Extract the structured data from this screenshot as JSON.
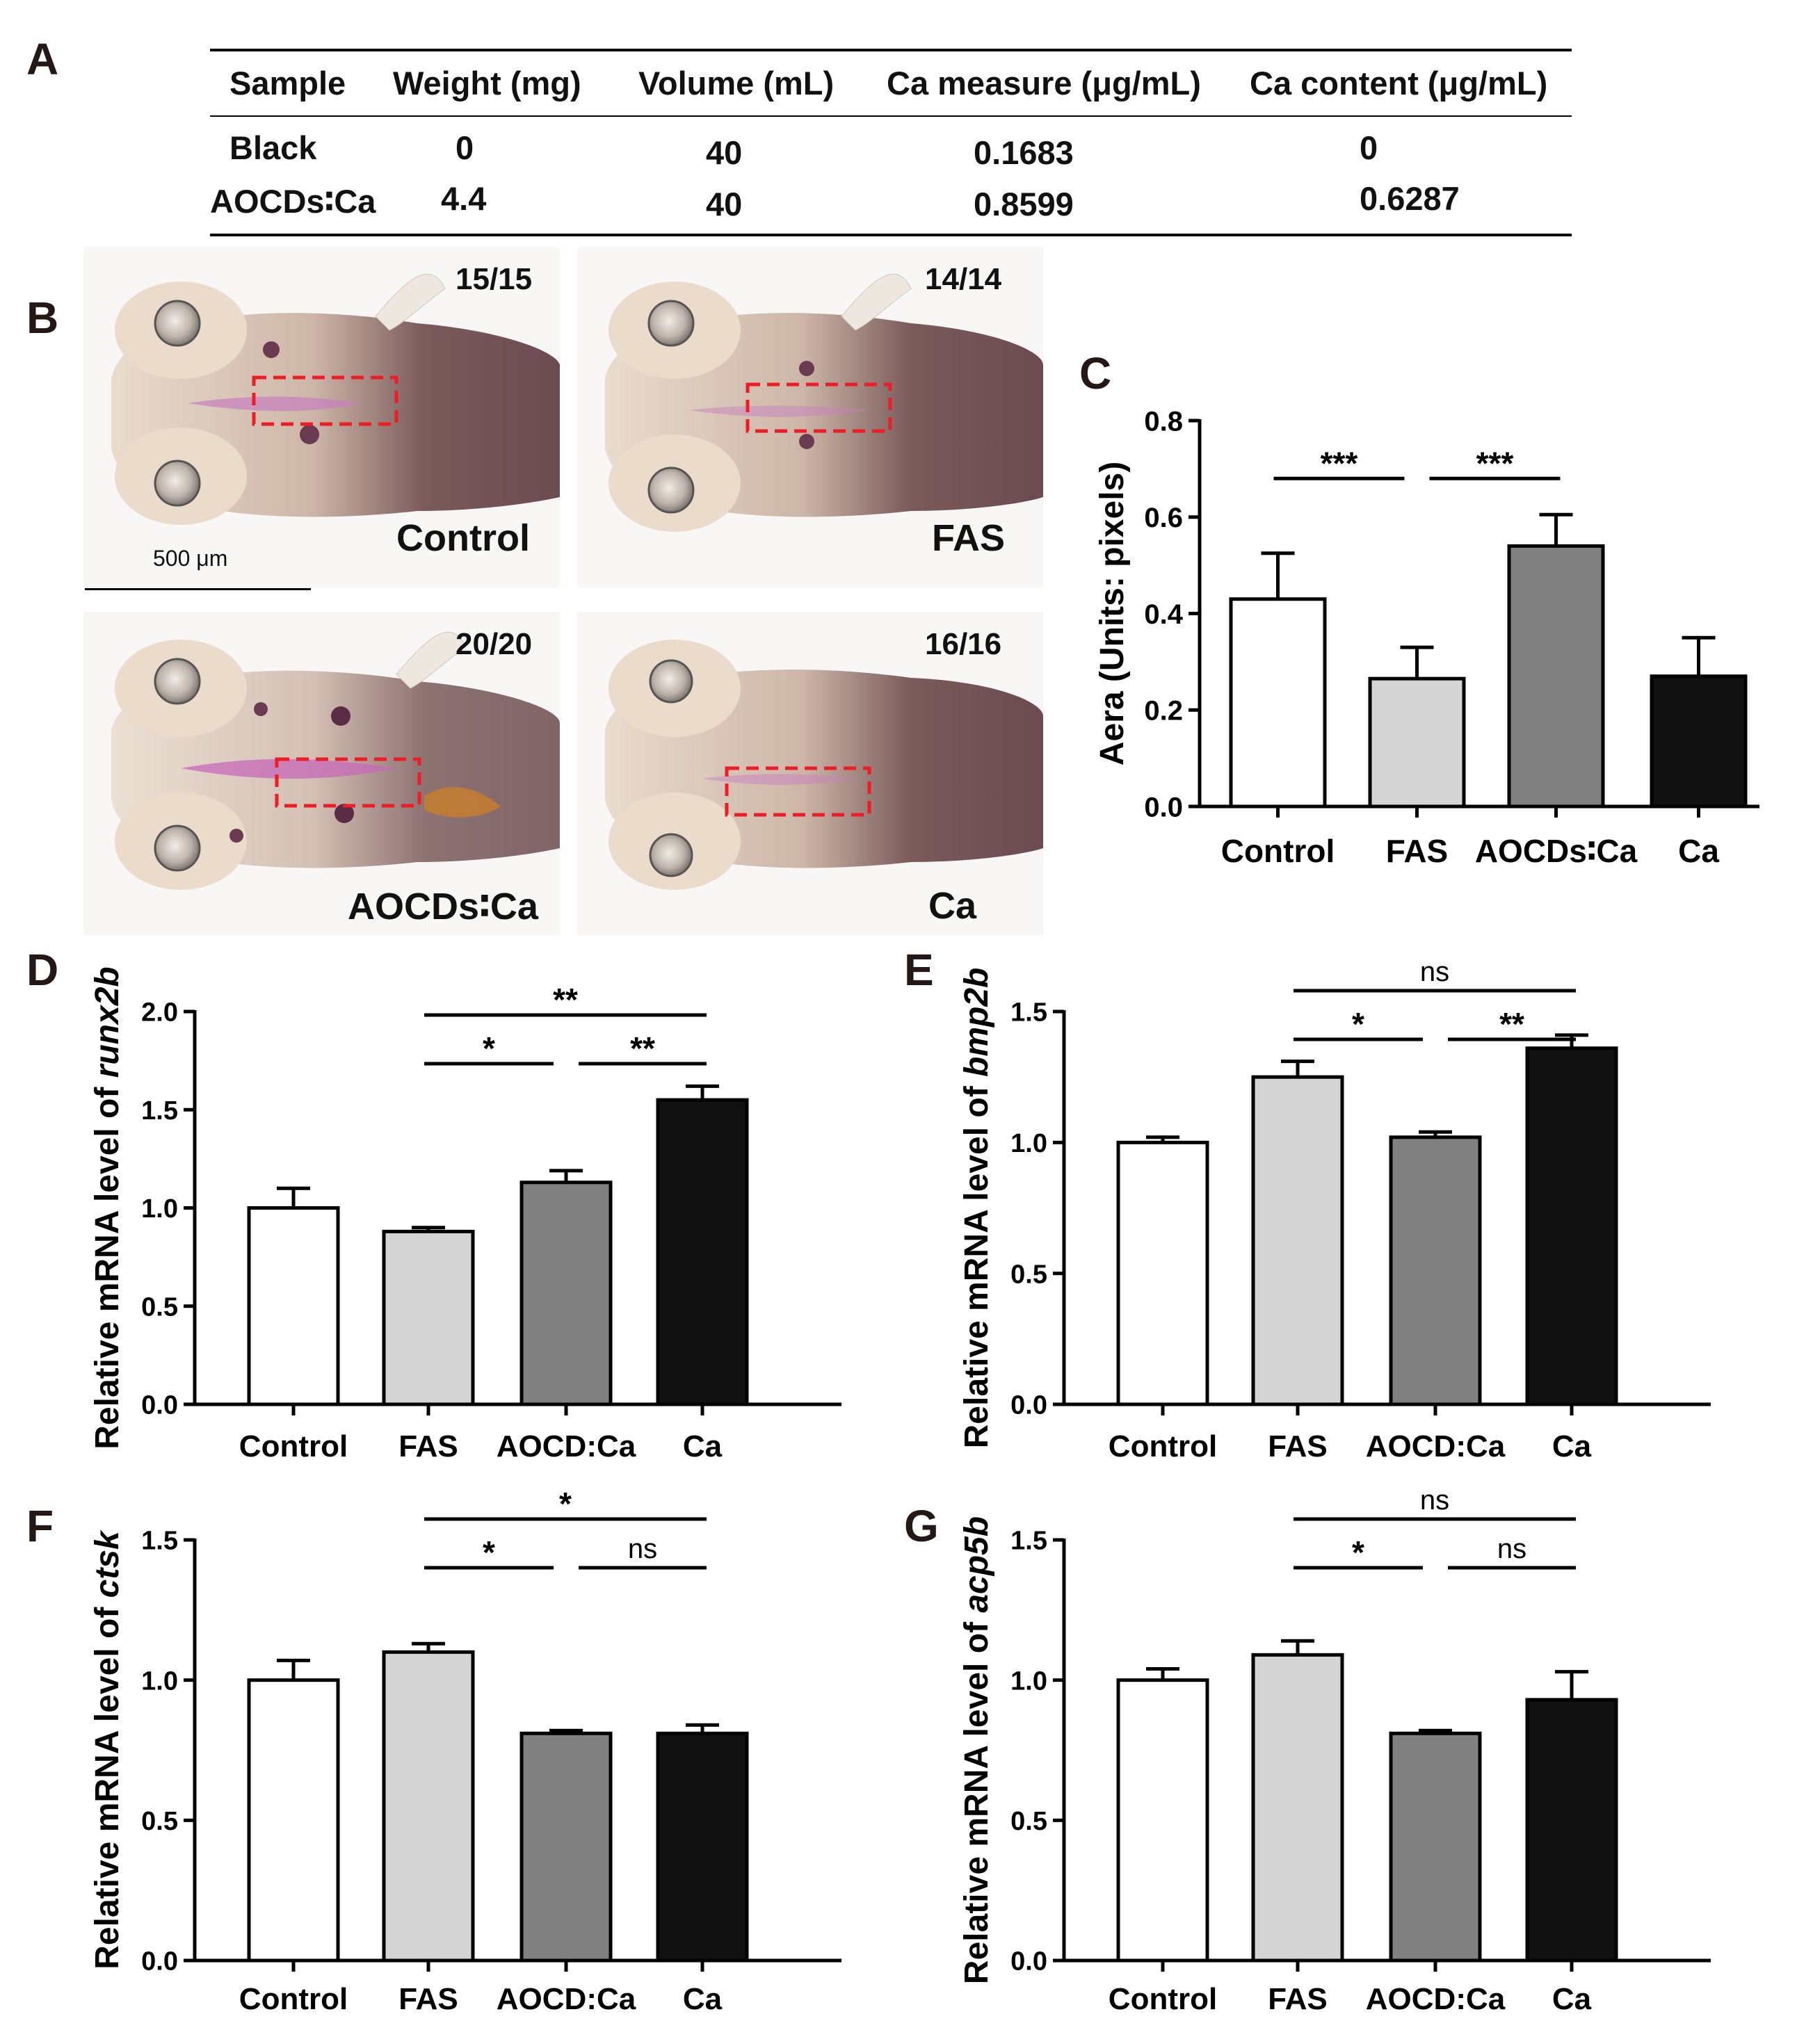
{
  "panels": {
    "A": "A",
    "B": "B",
    "C": "C",
    "D": "D",
    "E": "E",
    "F": "F",
    "G": "G"
  },
  "table": {
    "headers": [
      "Sample",
      "Weight (mg)",
      "Volume (mL)",
      "Ca measure (μg/mL)",
      "Ca content (μg/mL)"
    ],
    "rows": [
      [
        "Black",
        "0",
        "40",
        "0.1683",
        "0"
      ],
      [
        "AOCDs∶Ca",
        "4.4",
        "40",
        "0.8599",
        "0.6287"
      ]
    ]
  },
  "images": {
    "scale_bar": "500 μm",
    "fish": [
      {
        "label": "Control",
        "count": "15/15"
      },
      {
        "label": "FAS",
        "count": "14/14"
      },
      {
        "label": "AOCDs∶Ca",
        "count": "20/20"
      },
      {
        "label": "Ca",
        "count": "16/16"
      }
    ]
  },
  "colors": {
    "control": "#ffffff",
    "fas": "#d4d4d4",
    "aocd": "#808080",
    "ca": "#111111",
    "highlight": "#ee1c24"
  },
  "chart_data": [
    {
      "id": "C",
      "type": "bar",
      "categories": [
        "Control",
        "FAS",
        "AOCDs∶Ca",
        "Ca"
      ],
      "values": [
        0.43,
        0.265,
        0.54,
        0.27
      ],
      "errors": [
        0.095,
        0.065,
        0.065,
        0.08
      ],
      "ylabel": "Aera (Units: pixels)",
      "ylim": [
        0,
        0.8
      ],
      "ticks": [
        0.0,
        0.2,
        0.4,
        0.6,
        0.8
      ],
      "tick_labels": [
        "0.0",
        "0.2",
        "0.4",
        "0.6",
        "0.8"
      ],
      "significance": [
        {
          "from": 0,
          "to": 1,
          "label": "***"
        },
        {
          "from": 1,
          "to": 2,
          "label": "***"
        }
      ]
    },
    {
      "id": "D",
      "type": "bar",
      "categories": [
        "Control",
        "FAS",
        "AOCD:Ca",
        "Ca"
      ],
      "values": [
        1.0,
        0.88,
        1.13,
        1.55
      ],
      "errors": [
        0.1,
        0.02,
        0.06,
        0.07
      ],
      "ylabel_prefix": "Relative mRNA level of ",
      "gene": "runx2b",
      "ylim": [
        0,
        2.0
      ],
      "ticks": [
        0.0,
        0.5,
        1.0,
        1.5,
        2.0
      ],
      "tick_labels": [
        "0.0",
        "0.5",
        "1.0",
        "1.5",
        "2.0"
      ],
      "significance": [
        {
          "from": 1,
          "to": 3,
          "label": "**"
        },
        {
          "from": 1,
          "to": 2,
          "label": "*"
        },
        {
          "from": 2,
          "to": 3,
          "label": "**"
        }
      ]
    },
    {
      "id": "E",
      "type": "bar",
      "categories": [
        "Control",
        "FAS",
        "AOCD:Ca",
        "Ca"
      ],
      "values": [
        1.0,
        1.25,
        1.02,
        1.36
      ],
      "errors": [
        0.02,
        0.06,
        0.02,
        0.05
      ],
      "ylabel_prefix": "Relative mRNA level of ",
      "gene": "bmp2b",
      "ylim": [
        0,
        1.5
      ],
      "ticks": [
        0.0,
        0.5,
        1.0,
        1.5
      ],
      "tick_labels": [
        "0.0",
        "0.5",
        "1.0",
        "1.5"
      ],
      "significance": [
        {
          "from": 1,
          "to": 3,
          "label": "ns"
        },
        {
          "from": 1,
          "to": 2,
          "label": "*"
        },
        {
          "from": 2,
          "to": 3,
          "label": "**"
        }
      ]
    },
    {
      "id": "F",
      "type": "bar",
      "categories": [
        "Control",
        "FAS",
        "AOCD:Ca",
        "Ca"
      ],
      "values": [
        1.0,
        1.1,
        0.81,
        0.81
      ],
      "errors": [
        0.07,
        0.03,
        0.01,
        0.03
      ],
      "ylabel_prefix": "Relative mRNA level of ",
      "gene": "ctsk",
      "ylim": [
        0,
        1.5
      ],
      "ticks": [
        0.0,
        0.5,
        1.0,
        1.5
      ],
      "tick_labels": [
        "0.0",
        "0.5",
        "1.0",
        "1.5"
      ],
      "significance": [
        {
          "from": 1,
          "to": 3,
          "label": "*"
        },
        {
          "from": 1,
          "to": 2,
          "label": "*"
        },
        {
          "from": 2,
          "to": 3,
          "label": "ns"
        }
      ]
    },
    {
      "id": "G",
      "type": "bar",
      "categories": [
        "Control",
        "FAS",
        "AOCD:Ca",
        "Ca"
      ],
      "values": [
        1.0,
        1.09,
        0.81,
        0.93
      ],
      "errors": [
        0.04,
        0.05,
        0.01,
        0.1
      ],
      "ylabel_prefix": "Relative mRNA level of ",
      "gene": "acp5b",
      "ylim": [
        0,
        1.5
      ],
      "ticks": [
        0.0,
        0.5,
        1.0,
        1.5
      ],
      "tick_labels": [
        "0.0",
        "0.5",
        "1.0",
        "1.5"
      ],
      "significance": [
        {
          "from": 1,
          "to": 3,
          "label": "ns"
        },
        {
          "from": 1,
          "to": 2,
          "label": "*"
        },
        {
          "from": 2,
          "to": 3,
          "label": "ns"
        }
      ]
    }
  ]
}
